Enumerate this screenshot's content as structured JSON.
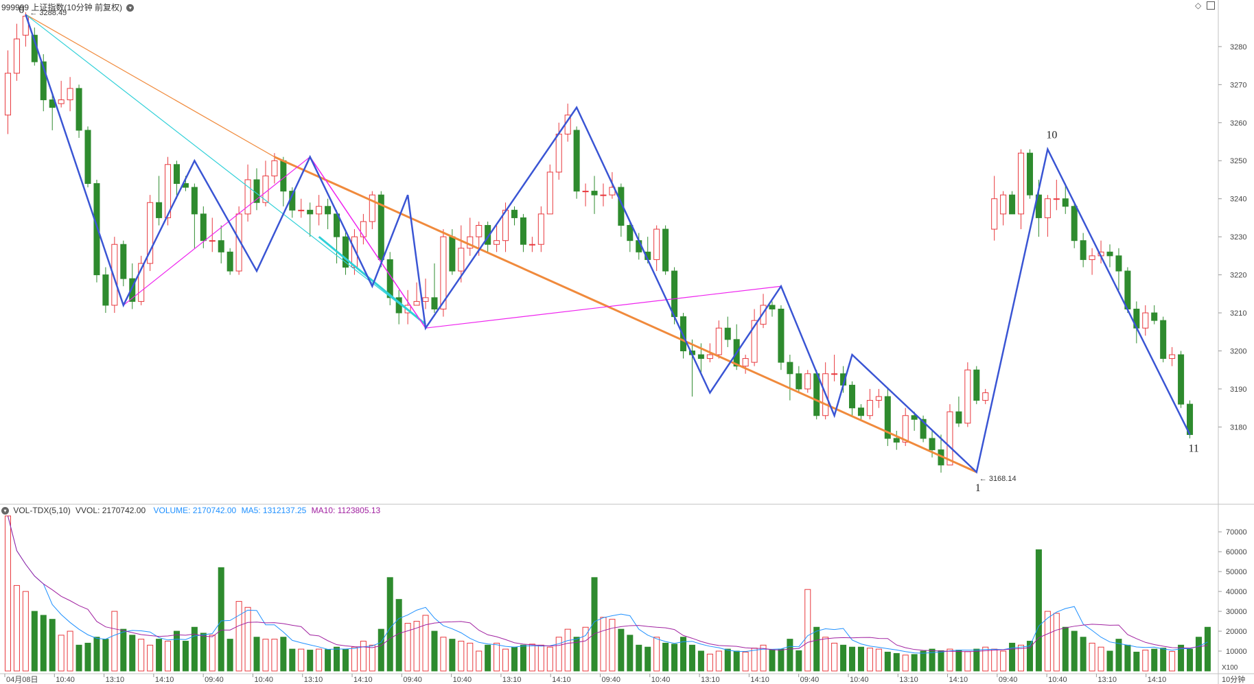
{
  "header": {
    "title": "999999 上证指数(10分钟 前复权)",
    "dropdown_icon": "chevron-down-circle-icon",
    "right_icons": [
      "diamond-icon",
      "panel-toggle-icon"
    ]
  },
  "volume_header": {
    "name": "VOL-TDX(5,10)",
    "vvol": "VVOL: 2170742.00",
    "volume": "VOLUME: 2170742.00",
    "ma5": "MA5: 1312137.25",
    "ma10": "MA10: 1123805.13"
  },
  "annotations": {
    "high_label": "3288.45",
    "low_label": "3168.14",
    "wave_labels": [
      "0",
      "1",
      "10",
      "11"
    ]
  },
  "x_ticks": [
    "04月08日",
    "10:40",
    "13:10",
    "14:10",
    "09:40",
    "10:40",
    "13:10",
    "14:10",
    "09:40",
    "10:40",
    "13:10",
    "14:10",
    "09:40",
    "10:40",
    "13:10",
    "14:10",
    "09:40",
    "10:40",
    "13:10",
    "14:10",
    "09:40",
    "10:40",
    "13:10",
    "14:10"
  ],
  "x_unit": "10分钟",
  "y_ticks": [
    "3280",
    "3270",
    "3260",
    "3250",
    "3240",
    "3230",
    "3220",
    "3210",
    "3200",
    "3190",
    "3180"
  ],
  "vol_ticks": [
    "70000",
    "60000",
    "50000",
    "40000",
    "30000",
    "20000",
    "10000"
  ],
  "vol_unit": "X100",
  "colors": {
    "up": "#e8383d",
    "down": "#2e8b2e",
    "wave": "#3a55d4",
    "magenta": "#ee22ee",
    "orange": "#f08a3c",
    "cyan": "#2fd0d8",
    "ma5": "#1e90ff",
    "ma10": "#a020a0",
    "axis": "#c0c0c0"
  },
  "chart_data": {
    "type": "candlestick",
    "price_range": [
      3166,
      3289
    ],
    "volume_range": [
      0,
      78000
    ],
    "candles": [
      [
        3262,
        3273,
        3279,
        3257
      ],
      [
        3273,
        3282,
        3286,
        3271
      ],
      [
        3283,
        3288,
        3289,
        3280
      ],
      [
        3283,
        3276,
        3285,
        3275
      ],
      [
        3276,
        3266,
        3278,
        3263
      ],
      [
        3266,
        3264,
        3268,
        3258
      ],
      [
        3265,
        3266,
        3271,
        3264
      ],
      [
        3266,
        3269,
        3272,
        3263
      ],
      [
        3269,
        3258,
        3270,
        3256
      ],
      [
        3258,
        3244,
        3259,
        3243
      ],
      [
        3244,
        3220,
        3245,
        3218
      ],
      [
        3220,
        3212,
        3222,
        3210
      ],
      [
        3212,
        3228,
        3230,
        3210
      ],
      [
        3228,
        3219,
        3229,
        3217
      ],
      [
        3219,
        3213,
        3223,
        3211
      ],
      [
        3213,
        3223,
        3225,
        3212
      ],
      [
        3223,
        3239,
        3241,
        3221
      ],
      [
        3239,
        3235,
        3246,
        3233
      ],
      [
        3235,
        3249,
        3251,
        3233
      ],
      [
        3249,
        3244,
        3250,
        3240
      ],
      [
        3244,
        3243,
        3246,
        3242
      ],
      [
        3243,
        3236,
        3244,
        3227
      ],
      [
        3236,
        3229,
        3238,
        3227
      ],
      [
        3229,
        3229,
        3235,
        3226
      ],
      [
        3229,
        3226,
        3233,
        3223
      ],
      [
        3226,
        3221,
        3227,
        3220
      ],
      [
        3221,
        3236,
        3238,
        3220
      ],
      [
        3236,
        3245,
        3249,
        3234
      ],
      [
        3245,
        3239,
        3248,
        3237
      ],
      [
        3239,
        3246,
        3250,
        3238
      ],
      [
        3246,
        3250,
        3252,
        3244
      ],
      [
        3250,
        3242,
        3251,
        3238
      ],
      [
        3242,
        3237,
        3243,
        3235
      ],
      [
        3237,
        3237,
        3240,
        3235
      ],
      [
        3237,
        3236,
        3239,
        3230
      ],
      [
        3236,
        3238,
        3241,
        3233
      ],
      [
        3238,
        3236,
        3240,
        3232
      ],
      [
        3236,
        3230,
        3237,
        3223
      ],
      [
        3230,
        3222,
        3232,
        3220
      ],
      [
        3222,
        3230,
        3232,
        3220
      ],
      [
        3230,
        3234,
        3236,
        3228
      ],
      [
        3234,
        3241,
        3242,
        3232
      ],
      [
        3241,
        3224,
        3242,
        3222
      ],
      [
        3224,
        3214,
        3226,
        3212
      ],
      [
        3214,
        3210,
        3216,
        3207
      ],
      [
        3210,
        3212,
        3216,
        3207
      ],
      [
        3212,
        3213,
        3218,
        3212
      ],
      [
        3213,
        3214,
        3219,
        3211
      ],
      [
        3214,
        3211,
        3223,
        3210
      ],
      [
        3211,
        3230,
        3232,
        3209
      ],
      [
        3230,
        3221,
        3232,
        3220
      ],
      [
        3221,
        3227,
        3233,
        3218
      ],
      [
        3227,
        3230,
        3235,
        3225
      ],
      [
        3230,
        3233,
        3234,
        3225
      ],
      [
        3233,
        3228,
        3234,
        3226
      ],
      [
        3228,
        3229,
        3233,
        3226
      ],
      [
        3229,
        3237,
        3239,
        3226
      ],
      [
        3237,
        3235,
        3238,
        3233
      ],
      [
        3235,
        3228,
        3236,
        3226
      ],
      [
        3228,
        3228,
        3230,
        3226
      ],
      [
        3228,
        3236,
        3238,
        3226
      ],
      [
        3236,
        3247,
        3249,
        3236
      ],
      [
        3247,
        3257,
        3260,
        3245
      ],
      [
        3257,
        3262,
        3265,
        3255
      ],
      [
        3258,
        3242,
        3259,
        3240
      ],
      [
        3242,
        3242,
        3244,
        3238
      ],
      [
        3242,
        3241,
        3246,
        3236
      ],
      [
        3241,
        3241,
        3244,
        3238
      ],
      [
        3241,
        3243,
        3247,
        3240
      ],
      [
        3243,
        3233,
        3244,
        3230
      ],
      [
        3233,
        3229,
        3234,
        3226
      ],
      [
        3229,
        3226,
        3231,
        3224
      ],
      [
        3226,
        3224,
        3230,
        3223
      ],
      [
        3224,
        3232,
        3233,
        3221
      ],
      [
        3232,
        3221,
        3233,
        3220
      ],
      [
        3221,
        3209,
        3222,
        3207
      ],
      [
        3209,
        3200,
        3210,
        3198
      ],
      [
        3200,
        3199,
        3203,
        3188
      ],
      [
        3199,
        3198,
        3202,
        3194
      ],
      [
        3198,
        3199,
        3202,
        3197
      ],
      [
        3199,
        3206,
        3208,
        3198
      ],
      [
        3206,
        3203,
        3209,
        3201
      ],
      [
        3203,
        3196,
        3207,
        3195
      ],
      [
        3196,
        3198,
        3199,
        3194
      ],
      [
        3197,
        3208,
        3211,
        3196
      ],
      [
        3207,
        3212,
        3215,
        3206
      ],
      [
        3212,
        3211,
        3213,
        3209
      ],
      [
        3211,
        3197,
        3212,
        3195
      ],
      [
        3197,
        3194,
        3199,
        3187
      ],
      [
        3194,
        3190,
        3196,
        3189
      ],
      [
        3190,
        3194,
        3195,
        3189
      ],
      [
        3194,
        3183,
        3195,
        3182
      ],
      [
        3183,
        3194,
        3197,
        3182
      ],
      [
        3194,
        3194,
        3199,
        3192
      ],
      [
        3194,
        3191,
        3196,
        3189
      ],
      [
        3191,
        3185,
        3192,
        3183
      ],
      [
        3185,
        3183,
        3186,
        3182
      ],
      [
        3183,
        3187,
        3190,
        3182
      ],
      [
        3187,
        3188,
        3190,
        3185
      ],
      [
        3188,
        3177,
        3190,
        3175
      ],
      [
        3177,
        3176,
        3179,
        3174
      ],
      [
        3176,
        3183,
        3185,
        3175
      ],
      [
        3183,
        3182,
        3184,
        3179
      ],
      [
        3182,
        3177,
        3183,
        3176
      ],
      [
        3177,
        3174,
        3179,
        3172
      ],
      [
        3174,
        3170,
        3178,
        3168
      ],
      [
        3170,
        3184,
        3186,
        3170
      ],
      [
        3184,
        3181,
        3188,
        3180
      ],
      [
        3181,
        3195,
        3197,
        3180
      ],
      [
        3195,
        3187,
        3196,
        3186
      ],
      [
        3187,
        3189,
        3190,
        3186
      ],
      [
        3232,
        3240,
        3246,
        3229
      ],
      [
        3236,
        3241,
        3242,
        3233
      ],
      [
        3241,
        3236,
        3242,
        3236
      ],
      [
        3236,
        3252,
        3253,
        3232
      ],
      [
        3252,
        3241,
        3253,
        3240
      ],
      [
        3241,
        3235,
        3245,
        3230
      ],
      [
        3235,
        3240,
        3241,
        3230
      ],
      [
        3240,
        3240,
        3245,
        3237
      ],
      [
        3240,
        3238,
        3244,
        3236
      ],
      [
        3238,
        3229,
        3239,
        3227
      ],
      [
        3229,
        3224,
        3231,
        3222
      ],
      [
        3224,
        3225,
        3227,
        3220
      ],
      [
        3225,
        3226,
        3229,
        3223
      ],
      [
        3226,
        3225,
        3228,
        3222
      ],
      [
        3225,
        3221,
        3227,
        3216
      ],
      [
        3221,
        3211,
        3222,
        3210
      ],
      [
        3211,
        3206,
        3213,
        3202
      ],
      [
        3206,
        3210,
        3212,
        3204
      ],
      [
        3210,
        3208,
        3212,
        3207
      ],
      [
        3208,
        3198,
        3209,
        3197
      ],
      [
        3198,
        3199,
        3201,
        3196
      ],
      [
        3199,
        3186,
        3200,
        3185
      ],
      [
        3186,
        3178,
        3187,
        3177
      ]
    ],
    "volume": [
      78000,
      43000,
      40000,
      30000,
      28000,
      26000,
      18000,
      20000,
      13000,
      14000,
      17000,
      16000,
      30000,
      21000,
      18000,
      16000,
      13000,
      16000,
      15000,
      20000,
      15000,
      22000,
      19000,
      18000,
      52000,
      16000,
      35000,
      32000,
      17000,
      16000,
      16000,
      17000,
      11000,
      11000,
      10500,
      11000,
      10800,
      12000,
      11000,
      12000,
      15000,
      13000,
      21000,
      47000,
      36000,
      24000,
      25000,
      28000,
      20000,
      17000,
      16000,
      15000,
      14000,
      10000,
      13000,
      14000,
      11000,
      12000,
      13000,
      13500,
      13000,
      12000,
      17000,
      21000,
      17000,
      22000,
      47000,
      27000,
      26000,
      21000,
      18000,
      13000,
      12000,
      17000,
      14000,
      13500,
      17000,
      13000,
      10000,
      8500,
      10000,
      11000,
      10000,
      9500,
      11500,
      13000,
      10500,
      11000,
      16000,
      10200,
      41000,
      22000,
      17000,
      14000,
      13000,
      12000,
      12000,
      11500,
      11000,
      9500,
      8800,
      8000,
      8300,
      10000,
      11000,
      10200,
      11000,
      10500,
      9800,
      11000,
      12000,
      11000,
      10000,
      14000,
      13000,
      15000,
      61000,
      30000,
      29000,
      22000,
      20000,
      17000,
      14000,
      12000,
      10000,
      16000,
      13000,
      9500,
      10500,
      11000,
      11500,
      9800,
      13000,
      11000,
      17000,
      22000
    ]
  }
}
